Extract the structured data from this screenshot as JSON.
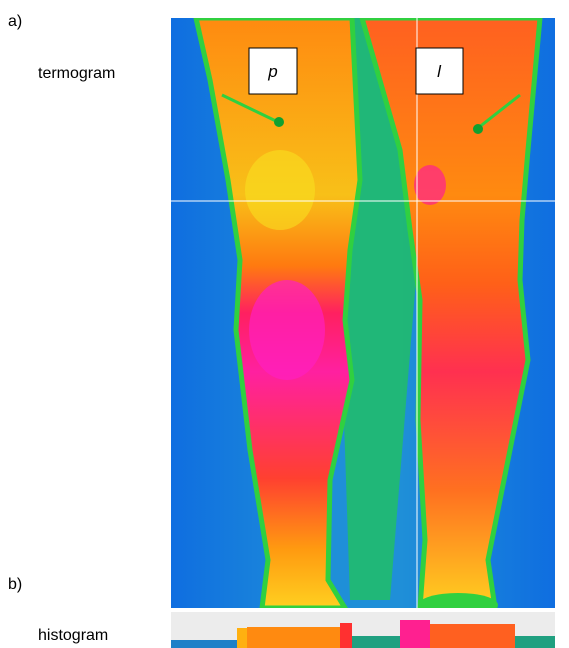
{
  "panel_a": {
    "label": "a)",
    "caption": "termogram",
    "markers": [
      "p",
      "l"
    ]
  },
  "panel_b": {
    "label": "b)",
    "caption": "histogram"
  }
}
